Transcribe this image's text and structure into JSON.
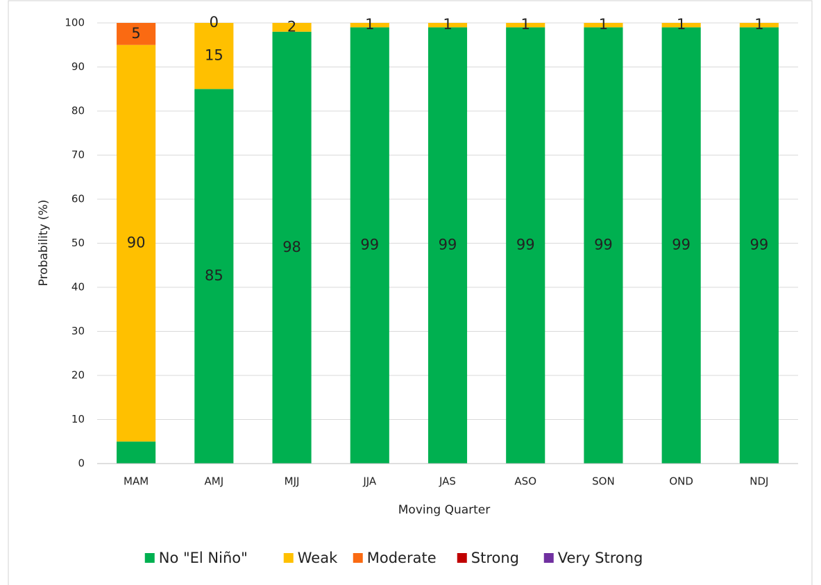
{
  "chart_data": {
    "type": "stacked_bar",
    "x_label": "Moving Quarter",
    "y_label": "Probability (%)",
    "categories": [
      "MAM",
      "AMJ",
      "MJJ",
      "JJA",
      "JAS",
      "ASO",
      "SON",
      "OND",
      "NDJ"
    ],
    "series": [
      {
        "name": "No \"El Niño\"",
        "color": "#00b050",
        "values": [
          5,
          85,
          98,
          99,
          99,
          99,
          99,
          99,
          99
        ],
        "value_labels": [
          null,
          "85",
          "98",
          "99",
          "99",
          "99",
          "99",
          "99",
          "99"
        ]
      },
      {
        "name": "Weak",
        "color": "#ffc000",
        "values": [
          90,
          15,
          2,
          1,
          1,
          1,
          1,
          1,
          1
        ],
        "value_labels": [
          "90",
          "15",
          "2",
          "1",
          "1",
          "1",
          "1",
          "1",
          "1"
        ]
      },
      {
        "name": "Moderate",
        "color": "#fa6a12",
        "values": [
          5,
          0,
          0,
          0,
          0,
          0,
          0,
          0,
          0
        ],
        "value_labels": [
          "5",
          "0",
          null,
          null,
          null,
          null,
          null,
          null,
          null
        ]
      },
      {
        "name": "Strong",
        "color": "#c00000",
        "values": [
          0,
          0,
          0,
          0,
          0,
          0,
          0,
          0,
          0
        ]
      },
      {
        "name": "Very Strong",
        "color": "#7030a0",
        "values": [
          0,
          0,
          0,
          0,
          0,
          0,
          0,
          0,
          0
        ]
      }
    ],
    "ylim": [
      0,
      100
    ],
    "yticks": [
      0,
      10,
      20,
      30,
      40,
      50,
      60,
      70,
      80,
      90,
      100
    ],
    "grid": true,
    "legend": "bottom"
  }
}
